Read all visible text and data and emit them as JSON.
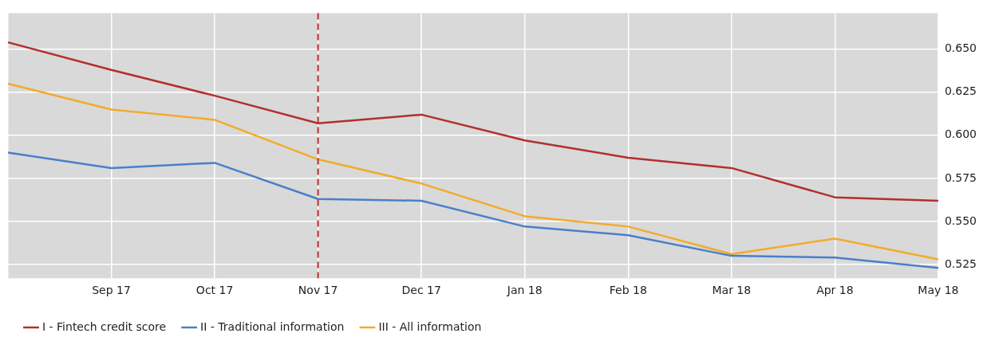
{
  "chart_data": {
    "type": "line",
    "categories": [
      null,
      "Sep 17",
      "Oct 17",
      "Nov 17",
      "Dec 17",
      "Jan 18",
      "Feb 18",
      "Mar 18",
      "Apr 18",
      "May 18"
    ],
    "series": [
      {
        "name": "I - Fintech credit score",
        "color": "#b22f2f",
        "values": [
          0.654,
          0.638,
          0.623,
          0.607,
          0.612,
          0.597,
          0.587,
          0.581,
          0.564,
          0.562
        ]
      },
      {
        "name": "II - Traditional information",
        "color": "#4a7fc9",
        "values": [
          0.59,
          0.581,
          0.584,
          0.563,
          0.562,
          0.547,
          0.542,
          0.53,
          0.529,
          0.523
        ]
      },
      {
        "name": "III - All information",
        "color": "#f0ac2c",
        "values": [
          0.63,
          0.615,
          0.609,
          0.586,
          0.572,
          0.553,
          0.547,
          0.531,
          0.54,
          0.528
        ]
      }
    ],
    "ylim": [
      0.517,
      0.671
    ],
    "yticks": [
      {
        "value": 0.525,
        "label": "0.525"
      },
      {
        "value": 0.55,
        "label": "0.550"
      },
      {
        "value": 0.575,
        "label": "0.575"
      },
      {
        "value": 0.6,
        "label": "0.600"
      },
      {
        "value": 0.625,
        "label": "0.625"
      },
      {
        "value": 0.65,
        "label": "0.650"
      }
    ],
    "ref_lines": [
      {
        "axis": "x",
        "value": "Nov 17",
        "color": "#b22f2f",
        "line_style": "dashed"
      }
    ],
    "grid": true,
    "legend": "bottom left",
    "marker": "none",
    "line_style": "solid"
  }
}
